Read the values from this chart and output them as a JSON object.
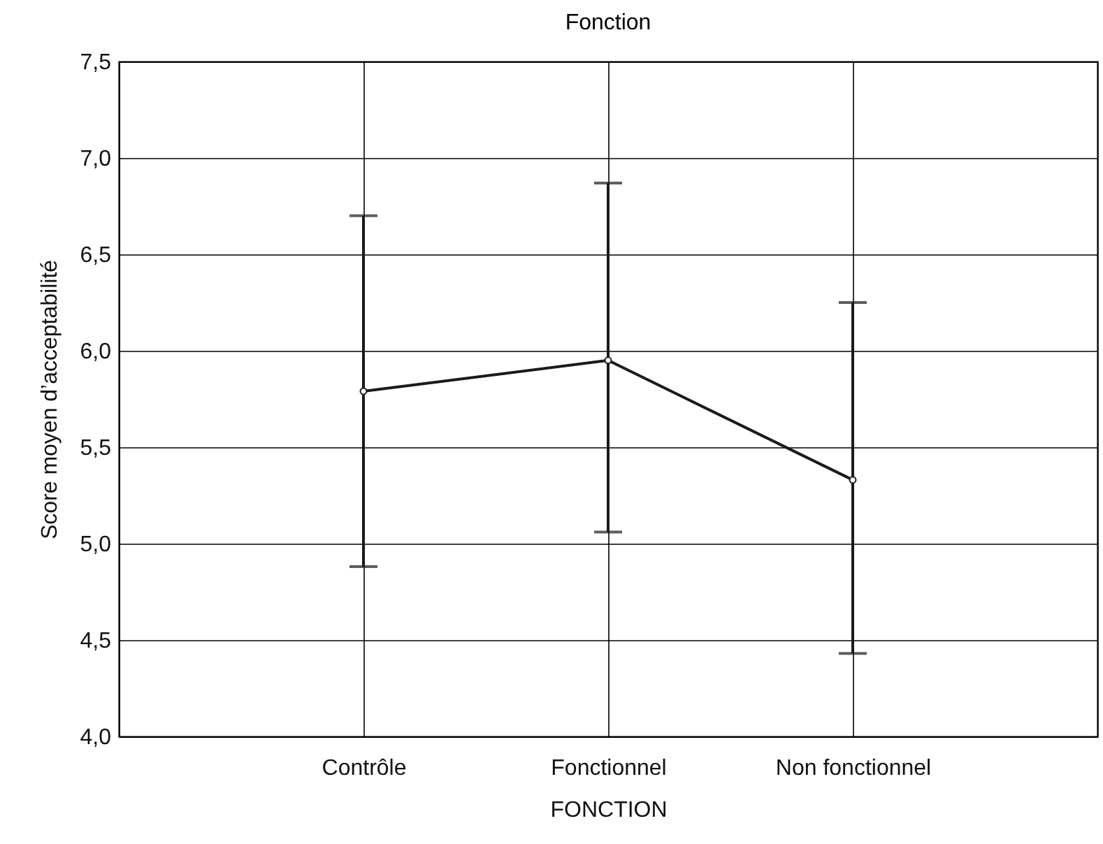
{
  "chart_data": {
    "type": "line",
    "title": "Fonction",
    "xlabel": "FONCTION",
    "ylabel": "Score moyen d’acceptabilité",
    "categories": [
      "Contrôle",
      "Fonctionnel",
      "Non fonctionnel"
    ],
    "values": [
      5.79,
      5.95,
      5.33
    ],
    "errors": [
      [
        4.88,
        6.7
      ],
      [
        5.06,
        6.87
      ],
      [
        4.43,
        6.25
      ]
    ],
    "color": "#1a1a1a",
    "marker": "circle",
    "line_style": "solid",
    "grid": true,
    "ylim": [
      4.0,
      7.5
    ],
    "yticks": [
      {
        "value": 4.0,
        "label": "4,0"
      },
      {
        "value": 4.5,
        "label": "4,5"
      },
      {
        "value": 5.0,
        "label": "5,0"
      },
      {
        "value": 5.5,
        "label": "5,5"
      },
      {
        "value": 6.0,
        "label": "6,0"
      },
      {
        "value": 6.5,
        "label": "6,5"
      },
      {
        "value": 7.0,
        "label": "7,0"
      },
      {
        "value": 7.5,
        "label": "7,5"
      }
    ]
  }
}
